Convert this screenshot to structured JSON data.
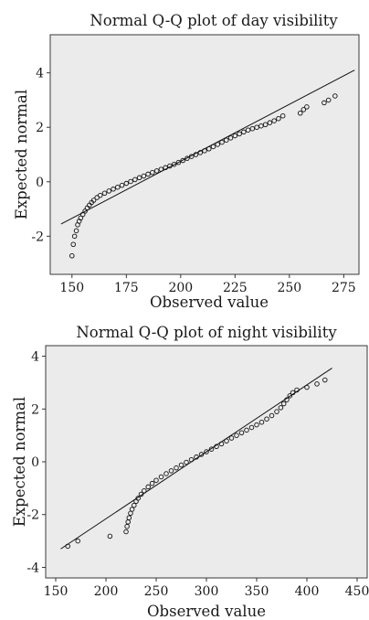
{
  "chart_data": [
    {
      "type": "scatter",
      "title": "Normal Q-Q plot of day visibility",
      "xlabel": "Observed value",
      "ylabel": "Expected normal",
      "xlim": [
        140,
        282
      ],
      "ylim": [
        -3.4,
        5.4
      ],
      "xticks": [
        "150",
        "175",
        "200",
        "225",
        "250",
        "275"
      ],
      "xtick_values": [
        150,
        175,
        200,
        225,
        250,
        275
      ],
      "yticks": [
        "4",
        "2",
        "0",
        "-2"
      ],
      "ytick_values": [
        4,
        2,
        0,
        -2
      ],
      "grid": false,
      "reference_line": {
        "x": [
          145,
          280
        ],
        "y": [
          -1.55,
          4.1
        ]
      },
      "series": [
        {
          "points": [
            [
              150,
              -2.72
            ],
            [
              150.6,
              -2.3
            ],
            [
              151.2,
              -2.0
            ],
            [
              152,
              -1.8
            ],
            [
              152.6,
              -1.58
            ],
            [
              153.3,
              -1.45
            ],
            [
              154,
              -1.33
            ],
            [
              155,
              -1.2
            ],
            [
              156,
              -1.08
            ],
            [
              157,
              -0.96
            ],
            [
              158,
              -0.86
            ],
            [
              159,
              -0.76
            ],
            [
              160,
              -0.68
            ],
            [
              161.5,
              -0.58
            ],
            [
              163,
              -0.5
            ],
            [
              165,
              -0.42
            ],
            [
              167,
              -0.34
            ],
            [
              169,
              -0.27
            ],
            [
              171,
              -0.2
            ],
            [
              173,
              -0.13
            ],
            [
              175,
              -0.06
            ],
            [
              177,
              0.01
            ],
            [
              179,
              0.08
            ],
            [
              181,
              0.15
            ],
            [
              183,
              0.21
            ],
            [
              185,
              0.28
            ],
            [
              187,
              0.34
            ],
            [
              189,
              0.4
            ],
            [
              191,
              0.46
            ],
            [
              193,
              0.52
            ],
            [
              195,
              0.58
            ],
            [
              197,
              0.64
            ],
            [
              199,
              0.71
            ],
            [
              201,
              0.78
            ],
            [
              203,
              0.86
            ],
            [
              205,
              0.93
            ],
            [
              207,
              1.0
            ],
            [
              209,
              1.07
            ],
            [
              211,
              1.14
            ],
            [
              213,
              1.21
            ],
            [
              215,
              1.29
            ],
            [
              217,
              1.37
            ],
            [
              219,
              1.45
            ],
            [
              221,
              1.53
            ],
            [
              223,
              1.61
            ],
            [
              225,
              1.69
            ],
            [
              227,
              1.76
            ],
            [
              229,
              1.83
            ],
            [
              231,
              1.9
            ],
            [
              233,
              1.95
            ],
            [
              235,
              2.0
            ],
            [
              237,
              2.05
            ],
            [
              239,
              2.1
            ],
            [
              241,
              2.17
            ],
            [
              243,
              2.24
            ],
            [
              245,
              2.32
            ],
            [
              247,
              2.42
            ],
            [
              255,
              2.52
            ],
            [
              256.5,
              2.65
            ],
            [
              258,
              2.75
            ],
            [
              266,
              2.9
            ],
            [
              268,
              3.0
            ],
            [
              271,
              3.15
            ]
          ]
        }
      ]
    },
    {
      "type": "scatter",
      "title": "Normal Q-Q plot of night visibility",
      "xlabel": "Observed value",
      "ylabel": "Expected normal",
      "xlim": [
        140,
        460
      ],
      "ylim": [
        -4.4,
        4.4
      ],
      "xticks": [
        "150",
        "200",
        "250",
        "300",
        "350",
        "400",
        "450"
      ],
      "xtick_values": [
        150,
        200,
        250,
        300,
        350,
        400,
        450
      ],
      "yticks": [
        "4",
        "2",
        "0",
        "-2",
        "-4"
      ],
      "ytick_values": [
        4,
        2,
        0,
        -2,
        -4
      ],
      "grid": false,
      "reference_line": {
        "x": [
          155,
          425
        ],
        "y": [
          -3.3,
          3.55
        ]
      },
      "series": [
        {
          "points": [
            [
              162,
              -3.2
            ],
            [
              172,
              -3.0
            ],
            [
              204,
              -2.82
            ],
            [
              220,
              -2.65
            ],
            [
              221,
              -2.45
            ],
            [
              222,
              -2.28
            ],
            [
              223,
              -2.12
            ],
            [
              224.5,
              -1.95
            ],
            [
              226,
              -1.8
            ],
            [
              228,
              -1.65
            ],
            [
              230,
              -1.5
            ],
            [
              232,
              -1.38
            ],
            [
              235,
              -1.23
            ],
            [
              238,
              -1.1
            ],
            [
              242,
              -0.95
            ],
            [
              246,
              -0.82
            ],
            [
              250,
              -0.7
            ],
            [
              255,
              -0.57
            ],
            [
              260,
              -0.45
            ],
            [
              265,
              -0.34
            ],
            [
              270,
              -0.23
            ],
            [
              275,
              -0.12
            ],
            [
              280,
              -0.02
            ],
            [
              285,
              0.08
            ],
            [
              290,
              0.18
            ],
            [
              295,
              0.28
            ],
            [
              300,
              0.38
            ],
            [
              305,
              0.48
            ],
            [
              310,
              0.58
            ],
            [
              315,
              0.68
            ],
            [
              320,
              0.79
            ],
            [
              325,
              0.9
            ],
            [
              330,
              1.0
            ],
            [
              335,
              1.1
            ],
            [
              340,
              1.2
            ],
            [
              345,
              1.3
            ],
            [
              350,
              1.4
            ],
            [
              355,
              1.5
            ],
            [
              360,
              1.62
            ],
            [
              365,
              1.75
            ],
            [
              370,
              1.9
            ],
            [
              374,
              2.05
            ],
            [
              377,
              2.2
            ],
            [
              380,
              2.35
            ],
            [
              383,
              2.5
            ],
            [
              386,
              2.62
            ],
            [
              390,
              2.72
            ],
            [
              400,
              2.82
            ],
            [
              410,
              2.95
            ],
            [
              418,
              3.1
            ]
          ]
        }
      ]
    }
  ]
}
